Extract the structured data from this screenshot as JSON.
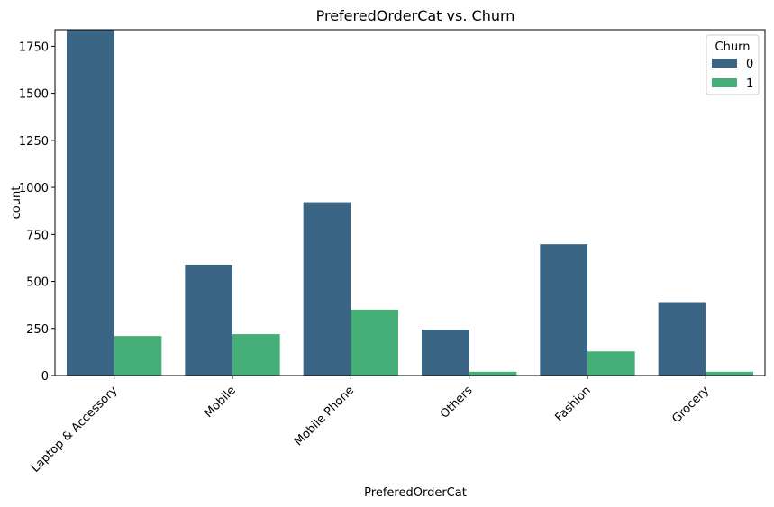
{
  "chart_data": {
    "type": "bar",
    "title": "PreferedOrderCat vs. Churn",
    "xlabel": "PreferedOrderCat",
    "ylabel": "count",
    "categories": [
      "Laptop & Accessory",
      "Mobile",
      "Mobile Phone",
      "Others",
      "Fashion",
      "Grocery"
    ],
    "series": [
      {
        "name": "0",
        "color": "#3b6584",
        "values": [
          1840,
          589,
          921,
          244,
          698,
          390
        ]
      },
      {
        "name": "1",
        "color": "#45af77",
        "values": [
          210,
          220,
          350,
          20,
          128,
          20
        ]
      }
    ],
    "ylim": [
      0,
      1838
    ],
    "yticks": [
      0,
      250,
      500,
      750,
      1000,
      1250,
      1500,
      1750
    ],
    "legend": {
      "title": "Churn",
      "placement": "top-right"
    },
    "grid": false
  }
}
